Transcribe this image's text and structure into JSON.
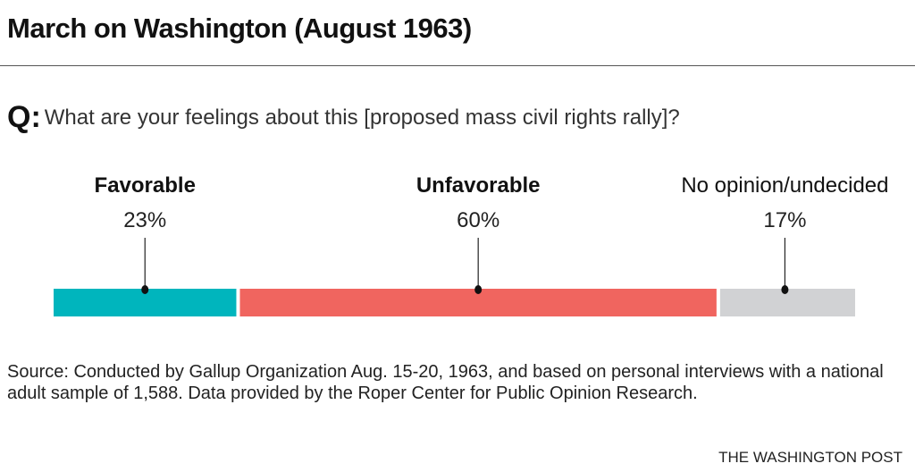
{
  "title": "March on Washington (August 1963)",
  "question": {
    "prefix": "Q:",
    "text": "What are your feelings about this [proposed mass civil rights rally]?"
  },
  "chart_data": {
    "type": "bar",
    "orientation": "horizontal-stacked",
    "categories": [
      "Favorable",
      "Unfavorable",
      "No opinion/undecided"
    ],
    "values": [
      23,
      60,
      17
    ],
    "labels": [
      "23%",
      "60%",
      "17%"
    ],
    "bold": [
      true,
      true,
      false
    ],
    "colors": [
      "#00b5bd",
      "#f0655f",
      "#d1d2d4"
    ],
    "unit": "%"
  },
  "source": "Source: Conducted by Gallup Organization Aug. 15-20, 1963, and based on personal interviews with a national adult sample of 1,588. Data provided by the Roper Center for Public Opinion Research.",
  "credit": "THE WASHINGTON POST"
}
